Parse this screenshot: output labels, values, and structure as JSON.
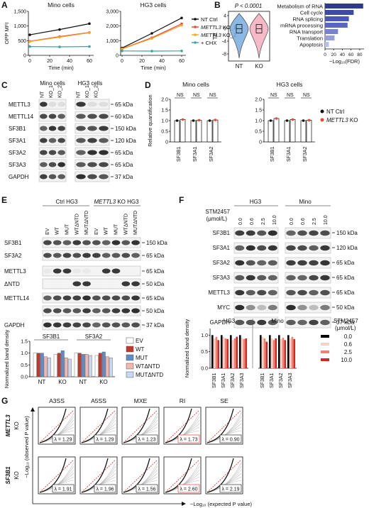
{
  "panels": {
    "a": "A",
    "b": "B",
    "c": "C",
    "d": "D",
    "e": "E",
    "f": "F",
    "g": "G"
  },
  "panelA": {
    "xlabel": "Time (min)",
    "ylabel": "OPP MFI",
    "charts": [
      {
        "title": "Mino cells",
        "yticks": [
          "0",
          "500",
          "1,000",
          "1,500"
        ],
        "ylim": [
          0,
          1500
        ],
        "x": [
          0,
          30,
          60
        ],
        "series": [
          {
            "name": "NT Ctrl",
            "color": "#111111",
            "values": [
              700,
              880,
              1080
            ]
          },
          {
            "name": "KO_1",
            "color": "#e24a33",
            "values": [
              480,
              640,
              780
            ]
          },
          {
            "name": "KO_2",
            "color": "#f5a623",
            "values": [
              470,
              620,
              770
            ]
          },
          {
            "name": "+ CHX",
            "color": "#3aa6a0",
            "values": [
              300,
              290,
              300
            ]
          }
        ]
      },
      {
        "title": "HG3 cells",
        "yticks": [
          "0",
          "1,000",
          "2,000",
          "3,000"
        ],
        "ylim": [
          0,
          3000
        ],
        "x": [
          0,
          30,
          60
        ],
        "series": [
          {
            "name": "NT Ctrl",
            "color": "#111111",
            "values": [
              500,
              1500,
              2550
            ]
          },
          {
            "name": "KO_1",
            "color": "#e24a33",
            "values": [
              450,
              1200,
              2150
            ]
          },
          {
            "name": "KO_2",
            "color": "#f5a623",
            "values": [
              430,
              1150,
              2050
            ]
          },
          {
            "name": "+ CHX",
            "color": "#3aa6a0",
            "values": [
              300,
              290,
              300
            ]
          }
        ]
      }
    ],
    "xticks": [
      "0",
      "20",
      "40",
      "60"
    ],
    "legend": [
      {
        "pre": "NT Ctrl",
        "gene": "",
        "post": "",
        "color": "#111111"
      },
      {
        "pre": "",
        "gene": "METTL3",
        "post": " KO_1",
        "color": "#e24a33"
      },
      {
        "pre": "",
        "gene": "METTL3",
        "post": " KO_2",
        "color": "#f5a623"
      },
      {
        "pre": "+ CHX",
        "gene": "",
        "post": "",
        "color": "#3aa6a0"
      }
    ]
  },
  "panelB": {
    "pvalue": "P < 0.0001",
    "ylabel": "TE",
    "yticks": [
      "4",
      "0",
      "-4",
      "-8"
    ],
    "groups": [
      "NT",
      "KO"
    ],
    "bars_xlabel": "−Log₁₀(FDR)",
    "bars_xticks": [
      "0",
      "20",
      "40",
      "60",
      "80"
    ],
    "terms": [
      {
        "label": "Metabolism of RNA",
        "value": 88
      },
      {
        "label": "Cell cycle",
        "value": 66
      },
      {
        "label": "RNA splicing",
        "value": 55
      },
      {
        "label": "mRNA processing",
        "value": 52
      },
      {
        "label": "RNA transport",
        "value": 30
      },
      {
        "label": "Translation",
        "value": 22
      },
      {
        "label": "Apoptosis",
        "value": 9
      }
    ]
  },
  "panelC": {
    "cells": [
      "Mino cells",
      "HG3 cells"
    ],
    "lanes": [
      "NT",
      "KO_1",
      "KO_2"
    ],
    "rows": [
      {
        "name": "METTL3",
        "kda": "65 kDa"
      },
      {
        "name": "METTL14",
        "kda": "60 kDa"
      },
      {
        "name": "SF3B1",
        "kda": "150 kDa"
      },
      {
        "name": "SF3A1",
        "kda": "120 kDa"
      },
      {
        "name": "SF3A2",
        "kda": "65 kDa"
      },
      {
        "name": "SF3A3",
        "kda": "65 kDa"
      },
      {
        "name": "GAPDH",
        "kda": "37 kDa"
      }
    ]
  },
  "panelD": {
    "ylabel": "Relative quantification",
    "yticks": [
      "0",
      "0.5",
      "1.0",
      "1.5",
      "2.0"
    ],
    "ns": "NS",
    "categories": [
      "SF3B1",
      "SF3A1",
      "SF3A2"
    ],
    "legend": [
      {
        "pre": "NT Ctrl",
        "gene": "",
        "post": ""
      },
      {
        "pre": "",
        "gene": "METTL3",
        "post": " KO"
      }
    ],
    "charts": [
      {
        "title": "Mino cells",
        "nt": [
          1.0,
          1.0,
          1.0
        ],
        "ko": [
          1.05,
          1.02,
          1.03
        ]
      },
      {
        "title": "HG3 cells",
        "nt": [
          1.0,
          1.0,
          1.0
        ],
        "ko": [
          1.1,
          1.05,
          1.02
        ]
      }
    ]
  },
  "panelE": {
    "groups": [
      {
        "pre": "Ctrl HG3",
        "gene": "",
        "post": ""
      },
      {
        "pre": "",
        "gene": "METTL3",
        "post": " KO HG3"
      }
    ],
    "lanes": [
      "EV",
      "WT",
      "MUT",
      "WTΔNTD",
      "MUTΔNTD",
      "EV",
      "WT",
      "MUT",
      "WTΔNTD",
      "MUTΔNTD"
    ],
    "rows": [
      {
        "name": "SF3B1",
        "kda": "150 kDa"
      },
      {
        "name": "SF3A2",
        "kda": "65 kDa"
      },
      {
        "name": "METTL3",
        "kda": "65 kDa"
      },
      {
        "name": "ΔNTD",
        "kda": "50 kDa"
      },
      {
        "name": "METTL14",
        "kda": "65 kDa"
      },
      {
        "name": "",
        "kda": "50 kDa"
      },
      {
        "name": "GAPDH",
        "kda": "37 kDa"
      }
    ],
    "chart": {
      "ylabel": "Normalized band density",
      "yticks": [
        "0.0",
        "0.5",
        "1.0",
        "1.5"
      ],
      "ylim": [
        0,
        1.5
      ],
      "groups": [
        "SF3B1",
        "SF3A2"
      ],
      "categories": [
        "NT",
        "KO",
        "NT",
        "KO"
      ],
      "series": [
        {
          "name": "EV",
          "color": "#ffffff",
          "values": [
            1.0,
            0.95,
            1.0,
            0.9
          ]
        },
        {
          "name": "WT",
          "color": "#c0392b",
          "values": [
            1.0,
            1.0,
            1.0,
            1.0
          ]
        },
        {
          "name": "MUT",
          "color": "#5b8ec9",
          "values": [
            1.0,
            1.1,
            0.95,
            1.05
          ]
        },
        {
          "name": "WTΔNTD",
          "color": "#f4b7b0",
          "values": [
            0.85,
            0.8,
            0.95,
            0.85
          ]
        },
        {
          "name": "MUTΔNTD",
          "color": "#c7d9f0",
          "values": [
            0.8,
            0.75,
            0.9,
            0.8
          ]
        }
      ]
    }
  },
  "panelF": {
    "cells": [
      "HG3",
      "Mino"
    ],
    "treatment": "STM2457",
    "unit": "(μmol/L)",
    "doses": [
      "0.0",
      "0.6",
      "2.5",
      "10.0",
      "0.0",
      "0.6",
      "2.5",
      "10.0"
    ],
    "rows": [
      {
        "name": "SF3B1",
        "kda": "150 kDa"
      },
      {
        "name": "SF3A1",
        "kda": "120 kDa"
      },
      {
        "name": "SF3A2",
        "kda": "65 kDa"
      },
      {
        "name": "SF3A3",
        "kda": "65 kDa"
      },
      {
        "name": "METTL3",
        "kda": "65 kDa"
      },
      {
        "name": "MYC",
        "kda": "50 kDa"
      },
      {
        "name": "GAPDH",
        "kda": "37 kDa"
      }
    ],
    "chart": {
      "ylabel": "Normalized band density",
      "yticks": [
        "0.0",
        "0.5",
        "1.0"
      ],
      "ylim": [
        0,
        1.2
      ],
      "categories": [
        "SF3B1",
        "SF3A1",
        "SF3A2",
        "SF3A3"
      ],
      "legend_title": "STM2457",
      "legend_unit": "(μmol/L)",
      "series": [
        {
          "name": "0.0",
          "color": "#000000"
        },
        {
          "name": "0.6",
          "color": "#f8d0c8"
        },
        {
          "name": "2.5",
          "color": "#f08070"
        },
        {
          "name": "10.0",
          "color": "#d7261e"
        }
      ],
      "values": {
        "HG3": [
          [
            1.0,
            0.9,
            0.95,
            0.85
          ],
          [
            1.0,
            0.95,
            0.9,
            0.88
          ],
          [
            1.0,
            0.85,
            0.9,
            0.95
          ],
          [
            1.0,
            0.92,
            0.88,
            0.9
          ]
        ],
        "Mino": [
          [
            1.0,
            0.95,
            0.9,
            0.8
          ],
          [
            1.0,
            0.9,
            0.85,
            0.9
          ],
          [
            1.0,
            0.88,
            0.92,
            0.85
          ],
          [
            1.0,
            0.9,
            0.95,
            0.88
          ]
        ]
      }
    }
  },
  "panelG": {
    "events": [
      "A3SS",
      "A5SS",
      "MXE",
      "RI",
      "SE"
    ],
    "rows": [
      {
        "gene": "METTL3",
        "suffix": "KO",
        "lambdas": [
          "λ = 1.29",
          "λ = 1.29",
          "λ = 1.23",
          "λ = 1.73",
          "λ = 0.90"
        ],
        "highlight": 3
      },
      {
        "gene": "SF3B1",
        "suffix": "KO",
        "lambdas": [
          "λ = 1.91",
          "λ = 1.96",
          "λ = 1.56",
          "λ = 2.60",
          "λ = 2.19"
        ],
        "highlight": 3
      }
    ],
    "ylabel": "−Log₁₀ (observed P value)",
    "xlabel": "−Log₁₀ (expected P value)",
    "highlight_color": "#e02020"
  }
}
